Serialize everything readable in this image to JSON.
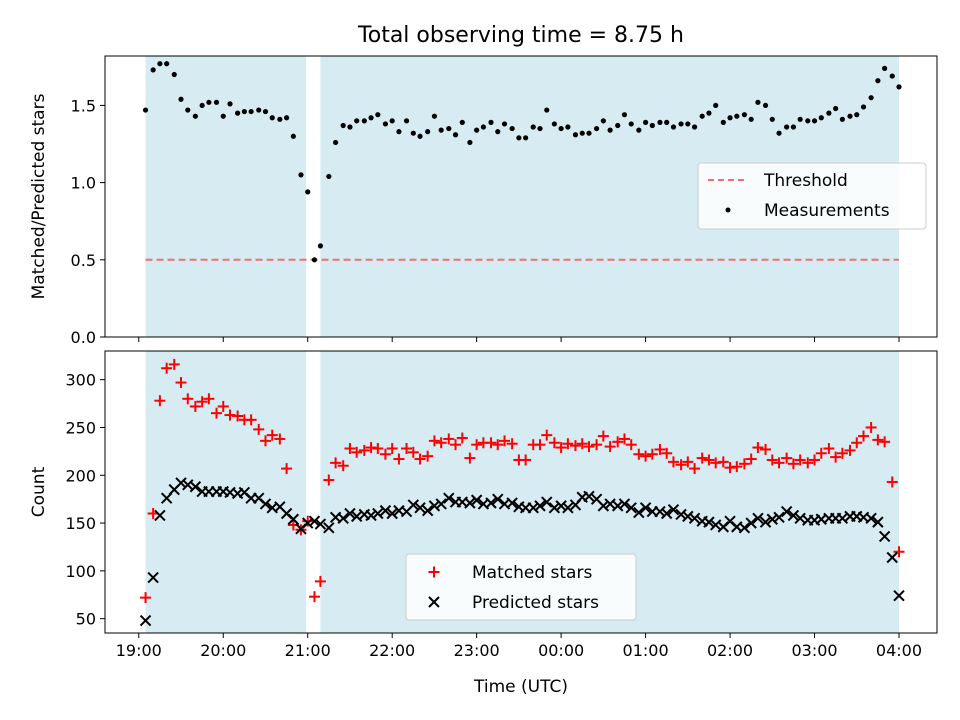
{
  "chart_data": {
    "type": "scatter",
    "title": "Total observing time = 8.75 h",
    "xlabel": "Time (UTC)",
    "x_unit": "hours (UTC, continuing past midnight)",
    "xlim": [
      18.6,
      28.45
    ],
    "x_ticks": [
      {
        "value": 19,
        "label": "19:00"
      },
      {
        "value": 20,
        "label": "20:00"
      },
      {
        "value": 21,
        "label": "21:00"
      },
      {
        "value": 22,
        "label": "22:00"
      },
      {
        "value": 23,
        "label": "23:00"
      },
      {
        "value": 24,
        "label": "00:00"
      },
      {
        "value": 25,
        "label": "01:00"
      },
      {
        "value": 26,
        "label": "02:00"
      },
      {
        "value": 27,
        "label": "03:00"
      },
      {
        "value": 28,
        "label": "04:00"
      }
    ],
    "shaded_intervals": [
      [
        19.08,
        20.98
      ],
      [
        21.15,
        28.0
      ]
    ],
    "shade_color": "#add8e6",
    "panels": [
      {
        "ylabel": "Matched/Predicted stars",
        "ylim": [
          0,
          1.82
        ],
        "y_ticks": [
          {
            "value": 0.0,
            "label": "0.0"
          },
          {
            "value": 0.5,
            "label": "0.5"
          },
          {
            "value": 1.0,
            "label": "1.0"
          },
          {
            "value": 1.5,
            "label": "1.5"
          }
        ],
        "threshold": {
          "name": "Threshold",
          "value": 0.5,
          "color": "#f07070"
        },
        "legend": [
          "Threshold",
          "Measurements"
        ],
        "legend_position": "center-right",
        "series": [
          {
            "name": "Measurements",
            "color": "#000000",
            "marker": "dot",
            "x": [
              19.08,
              19.17,
              19.25,
              19.33,
              19.42,
              19.5,
              19.58,
              19.67,
              19.75,
              19.83,
              19.92,
              20.0,
              20.08,
              20.17,
              20.25,
              20.33,
              20.42,
              20.5,
              20.58,
              20.67,
              20.75,
              20.83,
              20.92,
              21.0,
              21.08,
              21.15,
              21.25,
              21.33,
              21.42,
              21.5,
              21.58,
              21.67,
              21.75,
              21.83,
              21.92,
              22.0,
              22.08,
              22.17,
              22.25,
              22.33,
              22.42,
              22.5,
              22.58,
              22.67,
              22.75,
              22.83,
              22.92,
              23.0,
              23.08,
              23.17,
              23.25,
              23.33,
              23.42,
              23.5,
              23.58,
              23.67,
              23.75,
              23.83,
              23.92,
              24.0,
              24.08,
              24.17,
              24.25,
              24.33,
              24.42,
              24.5,
              24.58,
              24.67,
              24.75,
              24.83,
              24.92,
              25.0,
              25.08,
              25.17,
              25.25,
              25.33,
              25.42,
              25.5,
              25.58,
              25.67,
              25.75,
              25.83,
              25.92,
              26.0,
              26.08,
              26.17,
              26.25,
              26.33,
              26.42,
              26.5,
              26.58,
              26.67,
              26.75,
              26.83,
              26.92,
              27.0,
              27.08,
              27.17,
              27.25,
              27.33,
              27.42,
              27.5,
              27.58,
              27.67,
              27.75,
              27.83,
              27.92,
              28.0
            ],
            "y": [
              1.47,
              1.73,
              1.77,
              1.77,
              1.7,
              1.54,
              1.47,
              1.43,
              1.5,
              1.52,
              1.52,
              1.43,
              1.51,
              1.45,
              1.46,
              1.46,
              1.47,
              1.46,
              1.42,
              1.41,
              1.42,
              1.3,
              1.05,
              0.94,
              0.5,
              0.59,
              1.04,
              1.26,
              1.37,
              1.36,
              1.4,
              1.4,
              1.42,
              1.44,
              1.38,
              1.4,
              1.33,
              1.4,
              1.32,
              1.3,
              1.33,
              1.43,
              1.34,
              1.35,
              1.31,
              1.39,
              1.26,
              1.34,
              1.36,
              1.39,
              1.33,
              1.38,
              1.35,
              1.29,
              1.29,
              1.36,
              1.35,
              1.47,
              1.38,
              1.35,
              1.36,
              1.31,
              1.32,
              1.32,
              1.35,
              1.4,
              1.34,
              1.37,
              1.44,
              1.38,
              1.34,
              1.39,
              1.37,
              1.39,
              1.39,
              1.36,
              1.38,
              1.38,
              1.36,
              1.43,
              1.45,
              1.5,
              1.39,
              1.42,
              1.43,
              1.44,
              1.41,
              1.52,
              1.5,
              1.41,
              1.32,
              1.36,
              1.36,
              1.41,
              1.4,
              1.4,
              1.42,
              1.45,
              1.48,
              1.41,
              1.43,
              1.44,
              1.49,
              1.55,
              1.66,
              1.74,
              1.69,
              1.62
            ]
          }
        ]
      },
      {
        "ylabel": "Count",
        "ylim": [
          35,
          330
        ],
        "y_ticks": [
          {
            "value": 50,
            "label": "50"
          },
          {
            "value": 100,
            "label": "100"
          },
          {
            "value": 150,
            "label": "150"
          },
          {
            "value": 200,
            "label": "200"
          },
          {
            "value": 250,
            "label": "250"
          },
          {
            "value": 300,
            "label": "300"
          }
        ],
        "legend": [
          "Matched stars",
          "Predicted stars"
        ],
        "legend_position": "lower-center",
        "series": [
          {
            "name": "Matched stars",
            "color": "#ff0000",
            "marker": "plus",
            "x": [
              19.08,
              19.17,
              19.25,
              19.33,
              19.42,
              19.5,
              19.58,
              19.67,
              19.75,
              19.83,
              19.92,
              20.0,
              20.08,
              20.17,
              20.25,
              20.33,
              20.42,
              20.5,
              20.58,
              20.67,
              20.75,
              20.83,
              20.92,
              21.0,
              21.08,
              21.15,
              21.25,
              21.33,
              21.42,
              21.5,
              21.58,
              21.67,
              21.75,
              21.83,
              21.92,
              22.0,
              22.08,
              22.17,
              22.25,
              22.33,
              22.42,
              22.5,
              22.58,
              22.67,
              22.75,
              22.83,
              22.92,
              23.0,
              23.08,
              23.17,
              23.25,
              23.33,
              23.42,
              23.5,
              23.58,
              23.67,
              23.75,
              23.83,
              23.92,
              24.0,
              24.08,
              24.17,
              24.25,
              24.33,
              24.42,
              24.5,
              24.58,
              24.67,
              24.75,
              24.83,
              24.92,
              25.0,
              25.08,
              25.17,
              25.25,
              25.33,
              25.42,
              25.5,
              25.58,
              25.67,
              25.75,
              25.83,
              25.92,
              26.0,
              26.08,
              26.17,
              26.25,
              26.33,
              26.42,
              26.5,
              26.58,
              26.67,
              26.75,
              26.83,
              26.92,
              27.0,
              27.08,
              27.17,
              27.25,
              27.33,
              27.42,
              27.5,
              27.58,
              27.67,
              27.75,
              27.83,
              27.92,
              28.0
            ],
            "y": [
              72,
              160,
              278,
              312,
              316,
              297,
              280,
              272,
              277,
              280,
              265,
              272,
              263,
              262,
              258,
              258,
              248,
              236,
              242,
              238,
              207,
              148,
              143,
              152,
              73,
              89,
              195,
              213,
              210,
              228,
              224,
              226,
              229,
              228,
              222,
              228,
              217,
              228,
              224,
              217,
              220,
              236,
              234,
              238,
              232,
              239,
              218,
              232,
              234,
              234,
              232,
              236,
              233,
              216,
              216,
              232,
              232,
              242,
              234,
              229,
              233,
              231,
              233,
              230,
              232,
              241,
              230,
              235,
              238,
              232,
              222,
              220,
              222,
              227,
              223,
              214,
              211,
              214,
              207,
              218,
              216,
              213,
              214,
              208,
              209,
              212,
              217,
              229,
              227,
              216,
              213,
              218,
              212,
              216,
              213,
              216,
              223,
              228,
              219,
              223,
              226,
              234,
              241,
              250,
              237,
              235,
              193,
              120
            ]
          },
          {
            "name": "Predicted stars",
            "color": "#000000",
            "marker": "x",
            "x": [
              19.08,
              19.17,
              19.25,
              19.33,
              19.42,
              19.5,
              19.58,
              19.67,
              19.75,
              19.83,
              19.92,
              20.0,
              20.08,
              20.17,
              20.25,
              20.33,
              20.42,
              20.5,
              20.58,
              20.67,
              20.75,
              20.83,
              20.92,
              21.0,
              21.08,
              21.15,
              21.25,
              21.33,
              21.42,
              21.5,
              21.58,
              21.67,
              21.75,
              21.83,
              21.92,
              22.0,
              22.08,
              22.17,
              22.25,
              22.33,
              22.42,
              22.5,
              22.58,
              22.67,
              22.75,
              22.83,
              22.92,
              23.0,
              23.08,
              23.17,
              23.25,
              23.33,
              23.42,
              23.5,
              23.58,
              23.67,
              23.75,
              23.83,
              23.92,
              24.0,
              24.08,
              24.17,
              24.25,
              24.33,
              24.42,
              24.5,
              24.58,
              24.67,
              24.75,
              24.83,
              24.92,
              25.0,
              25.08,
              25.17,
              25.25,
              25.33,
              25.42,
              25.5,
              25.58,
              25.67,
              25.75,
              25.83,
              25.92,
              26.0,
              26.08,
              26.17,
              26.25,
              26.33,
              26.42,
              26.5,
              26.58,
              26.67,
              26.75,
              26.83,
              26.92,
              27.0,
              27.08,
              27.17,
              27.25,
              27.33,
              27.42,
              27.5,
              27.58,
              27.67,
              27.75,
              27.83,
              27.92,
              28.0
            ],
            "y": [
              48,
              93,
              158,
              176,
              185,
              192,
              190,
              188,
              183,
              183,
              183,
              183,
              182,
              181,
              182,
              176,
              176,
              170,
              166,
              167,
              160,
              154,
              144,
              150,
              152,
              149,
              145,
              156,
              155,
              160,
              157,
              159,
              158,
              160,
              163,
              160,
              163,
              162,
              169,
              166,
              163,
              168,
              170,
              176,
              172,
              172,
              171,
              174,
              170,
              171,
              175,
              170,
              171,
              167,
              166,
              166,
              168,
              172,
              166,
              168,
              166,
              169,
              177,
              178,
              175,
              168,
              170,
              168,
              170,
              166,
              161,
              166,
              162,
              162,
              160,
              164,
              159,
              157,
              155,
              152,
              151,
              148,
              146,
              152,
              146,
              145,
              150,
              155,
              151,
              154,
              156,
              162,
              158,
              155,
              153,
              153,
              154,
              155,
              155,
              155,
              157,
              157,
              156,
              155,
              151,
              136,
              114,
              74
            ]
          }
        ]
      }
    ]
  }
}
